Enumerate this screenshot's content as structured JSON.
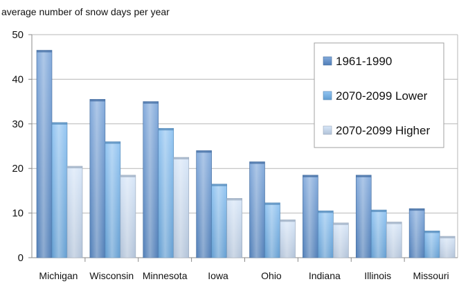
{
  "chart_data": {
    "type": "bar",
    "title": "",
    "ylabel": "average number of snow days per year",
    "xlabel": "",
    "ylim": [
      0,
      50
    ],
    "yticks": [
      0,
      10,
      20,
      30,
      40,
      50
    ],
    "grid": true,
    "legend_position": "top-right",
    "categories": [
      "Michigan",
      "Wisconsin",
      "Minnesota",
      "Iowa",
      "Ohio",
      "Indiana",
      "Illinois",
      "Missouri"
    ],
    "series": [
      {
        "name": "1961-1990",
        "values": [
          46.5,
          35.5,
          35,
          24,
          21.5,
          18.5,
          18.5,
          11
        ],
        "color": "#5b8fd0"
      },
      {
        "name": "2070-2099 Lower",
        "values": [
          30.3,
          26,
          29,
          16.5,
          12.3,
          10.5,
          10.7,
          6
        ],
        "color": "#6fb2ee"
      },
      {
        "name": "2070-2099 Higher",
        "values": [
          20.5,
          18.5,
          22.5,
          13.3,
          8.5,
          7.8,
          8,
          4.8
        ],
        "color": "#c9ddf6"
      }
    ]
  }
}
